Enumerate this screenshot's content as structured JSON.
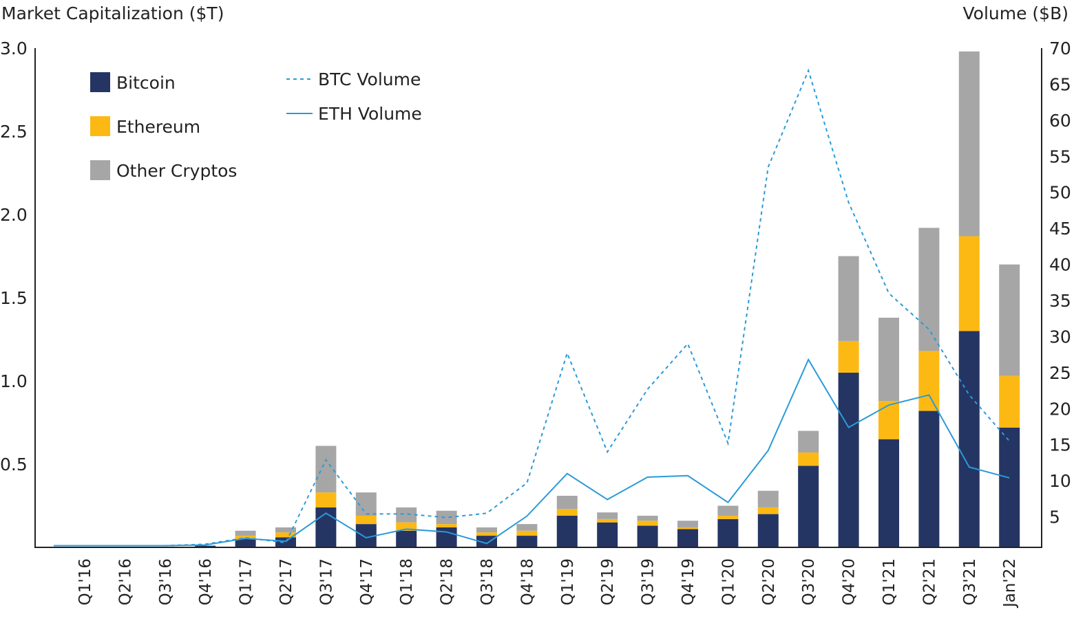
{
  "chart_data": {
    "type": "bar",
    "stacked": true,
    "y_left_label": "Market Capitalization ($T)",
    "y_right_label": "Volume ($B)",
    "ylim_left": [
      0,
      3.0
    ],
    "ylim_right": [
      0,
      70
    ],
    "yticks_left": [
      "0.5",
      "1.0",
      "1.5",
      "2.0",
      "2.5",
      "3.0"
    ],
    "yticks_right": [
      "5",
      "10",
      "15",
      "20",
      "25",
      "30",
      "35",
      "40",
      "45",
      "50",
      "55",
      "60",
      "65",
      "70"
    ],
    "grid": false,
    "legend_placement": "top-left",
    "categories": [
      "Q1'16",
      "Q2'16",
      "Q3'16",
      "Q4'16",
      "Q1'17",
      "Q2'17",
      "Q3'17",
      "Q4'17",
      "Q1'18",
      "Q2'18",
      "Q3'18",
      "Q4'18",
      "Q1'19",
      "Q2'19",
      "Q3'19",
      "Q4'19",
      "Q1'20",
      "Q2'20",
      "Q3'20",
      "Q4'20",
      "Q1'21",
      "Q2'21",
      "Q3'21",
      "Jan'22"
    ],
    "series": [
      {
        "name": "Bitcoin",
        "type": "bar",
        "axis": "left",
        "color": "#253563",
        "values": [
          0,
          0,
          0,
          0.01,
          0.05,
          0.06,
          0.24,
          0.14,
          0.1,
          0.12,
          0.07,
          0.07,
          0.19,
          0.15,
          0.13,
          0.11,
          0.17,
          0.2,
          0.49,
          1.05,
          0.65,
          0.82,
          1.3,
          0.72
        ]
      },
      {
        "name": "Ethereum",
        "type": "bar",
        "axis": "left",
        "color": "#FDB913",
        "values": [
          0,
          0,
          0,
          0,
          0.02,
          0.03,
          0.09,
          0.05,
          0.05,
          0.02,
          0.02,
          0.03,
          0.04,
          0.02,
          0.03,
          0.01,
          0.02,
          0.04,
          0.08,
          0.19,
          0.23,
          0.36,
          0.57,
          0.31
        ]
      },
      {
        "name": "Other Cryptos",
        "type": "bar",
        "axis": "left",
        "color": "#A6A6A6",
        "values": [
          0,
          0,
          0,
          0,
          0.03,
          0.03,
          0.28,
          0.14,
          0.09,
          0.08,
          0.03,
          0.04,
          0.08,
          0.04,
          0.03,
          0.04,
          0.06,
          0.1,
          0.13,
          0.51,
          0.5,
          0.74,
          1.11,
          0.67
        ]
      },
      {
        "name": "BTC Volume",
        "type": "line",
        "dashed": true,
        "axis": "right",
        "color": "#2A9AD8",
        "values": [
          1,
          1,
          1,
          1.2,
          2.1,
          1.4,
          12.9,
          5.4,
          5.4,
          4.9,
          5.5,
          9.7,
          27.7,
          14,
          22.7,
          29,
          15.2,
          53.5,
          66.9,
          48.6,
          36,
          31,
          21.9,
          15.5
        ]
      },
      {
        "name": "ETH Volume",
        "type": "line",
        "dashed": false,
        "axis": "right",
        "color": "#2A9AD8",
        "values": [
          1,
          1,
          1,
          1.1,
          2,
          1.6,
          5.5,
          2.1,
          3.3,
          2.9,
          1.3,
          5.1,
          11,
          7.4,
          10.5,
          10.7,
          7,
          14.2,
          26.8,
          17.4,
          20.5,
          21.9,
          11.9,
          10.4
        ]
      }
    ]
  }
}
